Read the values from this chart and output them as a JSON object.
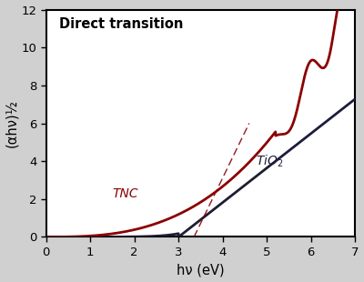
{
  "title": "Direct transition",
  "xlabel": "hν (eV)",
  "ylabel": "(αhν)½",
  "xlim": [
    0,
    7
  ],
  "ylim": [
    0,
    12
  ],
  "xticks": [
    0,
    1,
    2,
    3,
    4,
    5,
    6,
    7
  ],
  "yticks": [
    0,
    2,
    4,
    6,
    8,
    10,
    12
  ],
  "tio2_color": "#1c1c3c",
  "tnc_color": "#8b0000",
  "dashed_color_tio2": "#222222",
  "dashed_color_tnc": "#8b0000",
  "label_tio2": "TiO$_2$",
  "label_tnc": "TNC",
  "bg_color": "#ffffff",
  "fig_bg_color": "#d0d0d0"
}
